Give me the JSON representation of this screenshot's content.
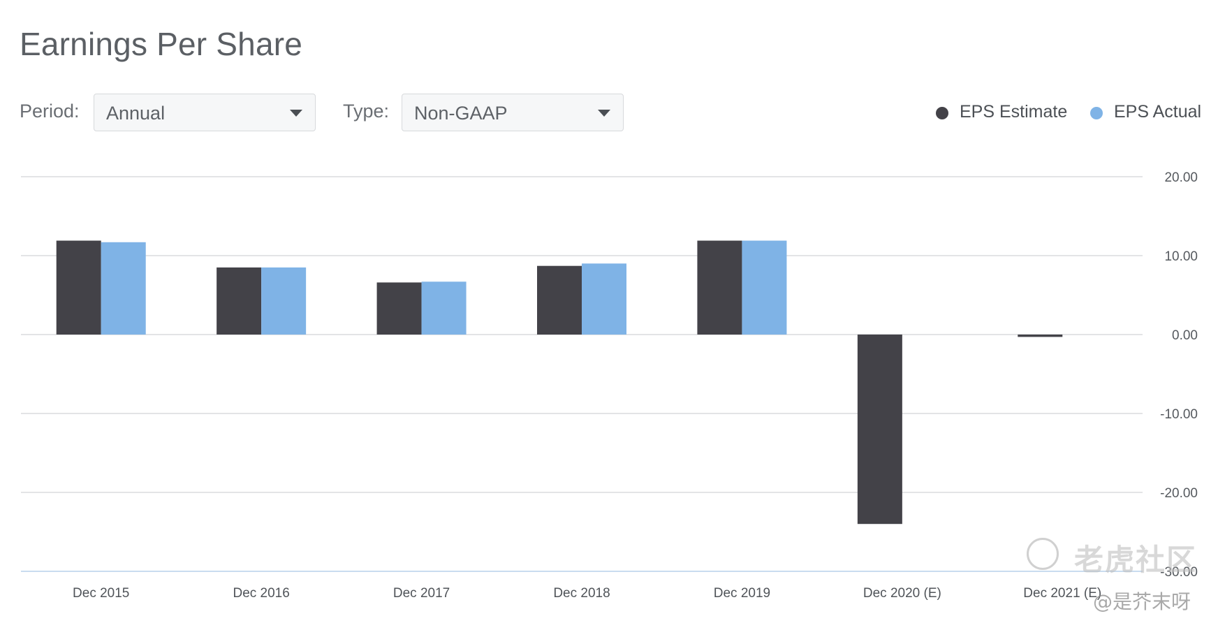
{
  "header": {
    "title": "Earnings Per Share"
  },
  "controls": {
    "period": {
      "label": "Period:",
      "value": "Annual"
    },
    "type": {
      "label": "Type:",
      "value": "Non-GAAP"
    }
  },
  "legend": {
    "estimate": {
      "label": "EPS Estimate",
      "color": "#434248"
    },
    "actual": {
      "label": "EPS Actual",
      "color": "#7fb3e6"
    }
  },
  "chart_data": {
    "type": "bar",
    "title": "Earnings Per Share",
    "categories": [
      "Dec 2015",
      "Dec 2016",
      "Dec 2017",
      "Dec 2018",
      "Dec 2019",
      "Dec 2020 (E)",
      "Dec 2021 (E)"
    ],
    "series": [
      {
        "name": "EPS Estimate",
        "color": "#434248",
        "values": [
          11.9,
          8.5,
          6.6,
          8.7,
          11.9,
          -24.0,
          -0.3
        ]
      },
      {
        "name": "EPS Actual",
        "color": "#7fb3e6",
        "values": [
          11.7,
          8.5,
          6.7,
          9.0,
          11.9,
          null,
          null
        ]
      }
    ],
    "yticks": [
      "20.00",
      "10.00",
      "0.00",
      "-10.00",
      "-20.00",
      "-30.00"
    ],
    "ylim": [
      -30,
      20
    ],
    "y_axis_side": "right",
    "grid": true,
    "legend_position": "top-right"
  },
  "watermark": {
    "brand": "老虎社区",
    "user": "@是芥末呀"
  }
}
